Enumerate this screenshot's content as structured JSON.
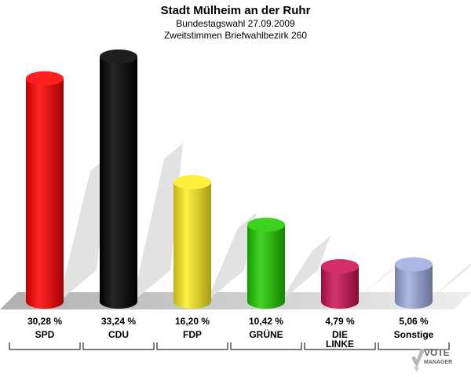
{
  "title": "Stadt Mülheim an der Ruhr",
  "subtitle1": "Bundestagswahl 27.09.2009",
  "subtitle2": "Zweitstimmen Briefwahlbezirk 260",
  "logo": {
    "line1": "VOTE",
    "line2": "MANAGER",
    "icon": "checkmark-icon"
  },
  "chart_data": {
    "type": "bar",
    "categories": [
      "SPD",
      "CDU",
      "FDP",
      "GRÜNE",
      "DIE LINKE",
      "Sonstige"
    ],
    "values": [
      30.28,
      33.24,
      16.2,
      10.42,
      4.79,
      5.06
    ],
    "value_labels": [
      "30,28 %",
      "33,24 %",
      "16,20 %",
      "10,42 %",
      "4,79 %",
      "5,06 %"
    ],
    "category_lines": [
      [
        "SPD"
      ],
      [
        "CDU"
      ],
      [
        "FDP"
      ],
      [
        "GRÜNE"
      ],
      [
        "DIE",
        "LINKE"
      ],
      [
        "Sonstige"
      ]
    ],
    "colors": [
      "#ff0000",
      "#000000",
      "#ffee22",
      "#22cc00",
      "#cc1155",
      "#a0aee0"
    ],
    "ylim": [
      0,
      33.24
    ],
    "grid": false,
    "legend": "none"
  }
}
